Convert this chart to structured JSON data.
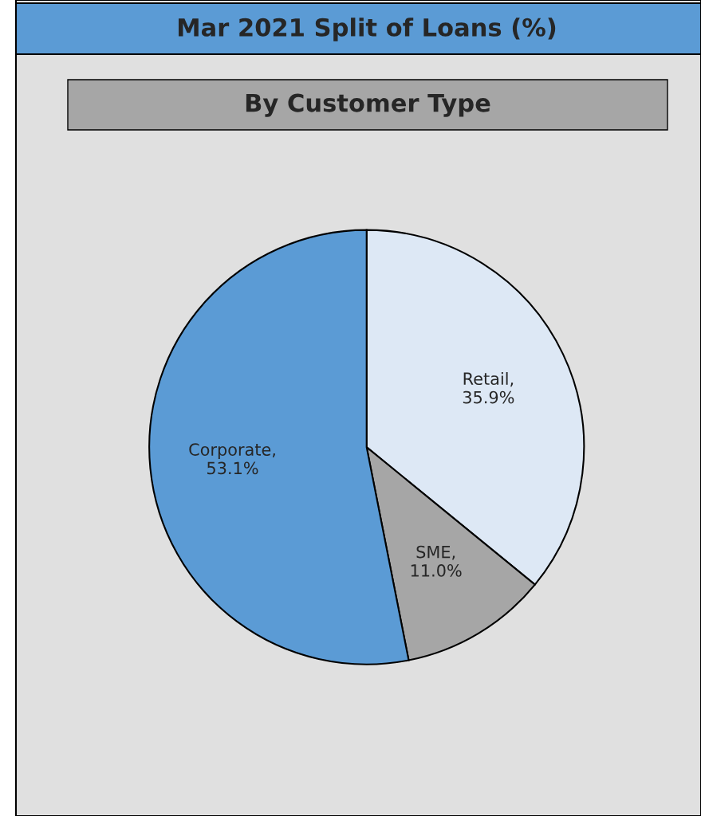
{
  "chart_data": {
    "type": "pie",
    "title": "Mar 2021 Split of Loans (%)",
    "subtitle": "By Customer Type",
    "categories": [
      "Retail",
      "SME",
      "Corporate"
    ],
    "values": [
      35.9,
      11.0,
      53.1
    ],
    "colors": [
      "#dde8f5",
      "#a6a6a6",
      "#5b9bd5"
    ],
    "value_labels": [
      ", 35.9%",
      ", 11.0%",
      ", 53.1%"
    ]
  }
}
